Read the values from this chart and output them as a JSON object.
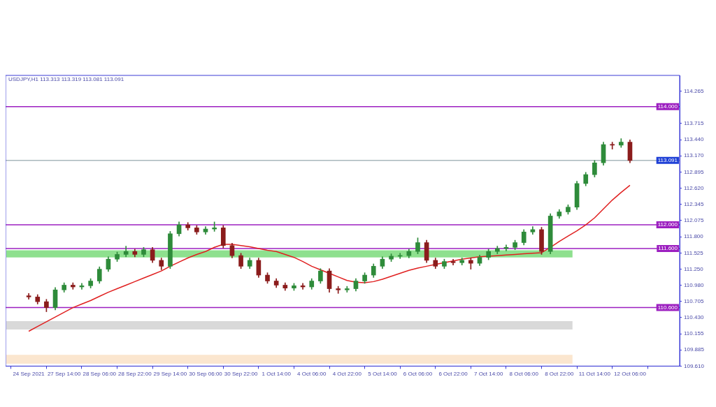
{
  "chart_data": {
    "type": "candlestick",
    "title": "USDJPY,H1 113.313 113.319 113.081 113.091",
    "categories": [
      "24 Sep 2021",
      null,
      null,
      null,
      "27 Sep 14:00",
      null,
      null,
      null,
      "28 Sep 06:00",
      null,
      null,
      null,
      "28 Sep 22:00",
      null,
      null,
      null,
      "29 Sep 14:00",
      null,
      null,
      null,
      "30 Sep 06:00",
      null,
      null,
      null,
      "30 Sep 22:00",
      null,
      null,
      null,
      "1 Oct 14:00",
      null,
      null,
      null,
      "4 Oct 06:00",
      null,
      null,
      null,
      "4 Oct 22:00",
      null,
      null,
      null,
      "5 Oct 14:00",
      null,
      null,
      null,
      "6 Oct 06:00",
      null,
      null,
      null,
      "6 Oct 22:00",
      null,
      null,
      null,
      "7 Oct 14:00",
      null,
      null,
      null,
      "8 Oct 06:00",
      null,
      null,
      null,
      "8 Oct 22:00",
      null,
      null,
      null,
      "11 Oct 14:00",
      null,
      null,
      null,
      "12 Oct 06:00"
    ],
    "series": [
      {
        "ohlc": [
          [
            110.8,
            110.84,
            110.74,
            110.78
          ],
          [
            110.78,
            110.82,
            110.66,
            110.7
          ],
          [
            110.7,
            110.74,
            110.53,
            110.6
          ],
          [
            110.6,
            110.94,
            110.56,
            110.9
          ],
          [
            110.9,
            111.02,
            110.86,
            110.98
          ],
          [
            110.98,
            111.02,
            110.91,
            110.95
          ],
          [
            110.95,
            111.01,
            110.91,
            110.97
          ],
          [
            110.97,
            111.09,
            110.93,
            111.05
          ],
          [
            111.05,
            111.29,
            111.01,
            111.25
          ],
          [
            111.25,
            111.46,
            111.21,
            111.42
          ],
          [
            111.42,
            111.54,
            111.38,
            111.5
          ],
          [
            111.5,
            111.64,
            111.46,
            111.55
          ],
          [
            111.55,
            111.59,
            111.46,
            111.5
          ],
          [
            111.5,
            111.62,
            111.46,
            111.58
          ],
          [
            111.58,
            111.62,
            111.36,
            111.4
          ],
          [
            111.4,
            111.44,
            111.24,
            111.3
          ],
          [
            111.3,
            111.89,
            111.26,
            111.85
          ],
          [
            111.85,
            112.05,
            111.81,
            112.0
          ],
          [
            112.0,
            112.04,
            111.91,
            111.95
          ],
          [
            111.95,
            111.99,
            111.84,
            111.88
          ],
          [
            111.88,
            111.97,
            111.84,
            111.93
          ],
          [
            111.93,
            112.05,
            111.89,
            111.95
          ],
          [
            111.95,
            111.99,
            111.61,
            111.65
          ],
          [
            111.65,
            111.69,
            111.44,
            111.48
          ],
          [
            111.48,
            111.52,
            111.26,
            111.3
          ],
          [
            111.3,
            111.44,
            111.26,
            111.4
          ],
          [
            111.4,
            111.44,
            111.11,
            111.15
          ],
          [
            111.15,
            111.19,
            111.01,
            111.05
          ],
          [
            111.05,
            111.09,
            110.94,
            110.98
          ],
          [
            110.98,
            111.02,
            110.89,
            110.93
          ],
          [
            110.93,
            111.01,
            110.89,
            110.97
          ],
          [
            110.97,
            111.01,
            110.91,
            110.95
          ],
          [
            110.95,
            111.09,
            110.91,
            111.05
          ],
          [
            111.05,
            111.26,
            111.01,
            111.22
          ],
          [
            111.22,
            111.26,
            110.86,
            110.92
          ],
          [
            110.92,
            110.96,
            110.84,
            110.9
          ],
          [
            110.9,
            110.96,
            110.86,
            110.92
          ],
          [
            110.92,
            111.09,
            110.88,
            111.05
          ],
          [
            111.05,
            111.19,
            111.01,
            111.15
          ],
          [
            111.15,
            111.34,
            111.11,
            111.3
          ],
          [
            111.3,
            111.46,
            111.26,
            111.42
          ],
          [
            111.42,
            111.51,
            111.38,
            111.47
          ],
          [
            111.47,
            111.52,
            111.43,
            111.48
          ],
          [
            111.48,
            111.59,
            111.44,
            111.55
          ],
          [
            111.55,
            111.78,
            111.51,
            111.7
          ],
          [
            111.7,
            111.74,
            111.36,
            111.4
          ],
          [
            111.4,
            111.44,
            111.26,
            111.3
          ],
          [
            111.3,
            111.42,
            111.26,
            111.38
          ],
          [
            111.38,
            111.42,
            111.32,
            111.36
          ],
          [
            111.36,
            111.44,
            111.32,
            111.4
          ],
          [
            111.4,
            111.44,
            111.25,
            111.35
          ],
          [
            111.35,
            111.49,
            111.31,
            111.45
          ],
          [
            111.45,
            111.59,
            111.41,
            111.55
          ],
          [
            111.55,
            111.64,
            111.51,
            111.6
          ],
          [
            111.6,
            111.66,
            111.56,
            111.62
          ],
          [
            111.62,
            111.74,
            111.58,
            111.7
          ],
          [
            111.7,
            111.92,
            111.66,
            111.88
          ],
          [
            111.88,
            111.97,
            111.84,
            111.92
          ],
          [
            111.92,
            111.96,
            111.5,
            111.55
          ],
          [
            111.55,
            112.19,
            111.51,
            112.15
          ],
          [
            112.15,
            112.26,
            112.11,
            112.22
          ],
          [
            112.22,
            112.34,
            112.18,
            112.3
          ],
          [
            112.3,
            112.74,
            112.26,
            112.7
          ],
          [
            112.7,
            112.89,
            112.66,
            112.85
          ],
          [
            112.85,
            113.09,
            112.81,
            113.05
          ],
          [
            113.05,
            113.4,
            113.01,
            113.36
          ],
          [
            113.36,
            113.4,
            113.28,
            113.35
          ],
          [
            113.35,
            113.46,
            113.31,
            113.4
          ],
          [
            113.4,
            113.44,
            113.05,
            113.09
          ]
        ],
        "colors": [
          "#8b1c1c",
          "#8b1c1c",
          "#8b1c1c",
          "#2e8b3a",
          "#2e8b3a",
          "#8b1c1c",
          "#2e8b3a",
          "#2e8b3a",
          "#2e8b3a",
          "#2e8b3a",
          "#2e8b3a",
          "#2e8b3a",
          "#8b1c1c",
          "#2e8b3a",
          "#8b1c1c",
          "#8b1c1c",
          "#2e8b3a",
          "#2e8b3a",
          "#8b1c1c",
          "#8b1c1c",
          "#2e8b3a",
          "#2e8b3a",
          "#8b1c1c",
          "#8b1c1c",
          "#8b1c1c",
          "#2e8b3a",
          "#8b1c1c",
          "#8b1c1c",
          "#8b1c1c",
          "#8b1c1c",
          "#2e8b3a",
          "#8b1c1c",
          "#2e8b3a",
          "#2e8b3a",
          "#8b1c1c",
          "#8b1c1c",
          "#2e8b3a",
          "#2e8b3a",
          "#2e8b3a",
          "#2e8b3a",
          "#2e8b3a",
          "#2e8b3a",
          "#2e8b3a",
          "#2e8b3a",
          "#2e8b3a",
          "#8b1c1c",
          "#8b1c1c",
          "#2e8b3a",
          "#8b1c1c",
          "#2e8b3a",
          "#8b1c1c",
          "#2e8b3a",
          "#2e8b3a",
          "#2e8b3a",
          "#2e8b3a",
          "#2e8b3a",
          "#2e8b3a",
          "#2e8b3a",
          "#8b1c1c",
          "#2e8b3a",
          "#2e8b3a",
          "#2e8b3a",
          "#2e8b3a",
          "#2e8b3a",
          "#2e8b3a",
          "#2e8b3a",
          "#8b1c1c",
          "#2e8b3a",
          "#8b1c1c"
        ]
      },
      {
        "type": "line",
        "color": "#e02020",
        "values": [
          110.2,
          110.28,
          110.36,
          110.44,
          110.52,
          110.6,
          110.66,
          110.72,
          110.79,
          110.86,
          110.92,
          110.98,
          111.04,
          111.1,
          111.16,
          111.22,
          111.3,
          111.37,
          111.44,
          111.5,
          111.55,
          111.62,
          111.67,
          111.67,
          111.65,
          111.63,
          111.6,
          111.57,
          111.55,
          111.5,
          111.45,
          111.38,
          111.3,
          111.24,
          111.18,
          111.12,
          111.06,
          111.03,
          111.02,
          111.04,
          111.08,
          111.13,
          111.18,
          111.23,
          111.27,
          111.3,
          111.33,
          111.36,
          111.39,
          111.42,
          111.44,
          111.46,
          111.47,
          111.48,
          111.49,
          111.5,
          111.51,
          111.52,
          111.53,
          111.62,
          111.72,
          111.81,
          111.9,
          112.0,
          112.12,
          112.27,
          112.42,
          112.55,
          112.67
        ]
      }
    ],
    "ylim": [
      109.61,
      114.53
    ],
    "yticks": [
      114.265,
      113.715,
      {
        "value": 113.44,
        "label": "113.440"
      },
      {
        "value": 113.17,
        "label": "113.170"
      },
      112.895,
      {
        "value": 112.62,
        "label": "112.620"
      },
      112.345,
      112.075,
      {
        "value": 111.8,
        "label": "111.800"
      },
      111.525,
      {
        "value": 111.25,
        "label": "111.250"
      },
      {
        "value": 110.98,
        "label": "110.980"
      },
      110.705,
      {
        "value": 110.43,
        "label": "110.430"
      },
      110.155,
      109.885,
      {
        "value": 109.61,
        "label": "109.610"
      }
    ],
    "ref_lines": [
      {
        "axis": "y",
        "value": 114.0,
        "label": "114.000",
        "color": "#9c1fc0"
      },
      {
        "axis": "y",
        "value": 113.091,
        "label": "113.091",
        "color": "#a9b8bc"
      },
      {
        "axis": "y",
        "value": 112.0,
        "label": "112.000",
        "color": "#9c1fc0"
      },
      {
        "axis": "y",
        "value": 111.6,
        "label": "111.600",
        "color": "#9c1fc0"
      },
      {
        "axis": "y",
        "value": 110.6,
        "label": "110.600",
        "color": "#9c1fc0"
      }
    ],
    "bands": [
      {
        "axis": "y",
        "from": 111.45,
        "to": 111.57,
        "color": "#8ee08e"
      },
      {
        "axis": "y",
        "from": 110.23,
        "to": 110.37,
        "color": "#d9d9d9"
      },
      {
        "axis": "y",
        "from": 109.65,
        "to": 109.8,
        "color": "#fbe6cf"
      }
    ],
    "grid": false,
    "legend": false
  }
}
